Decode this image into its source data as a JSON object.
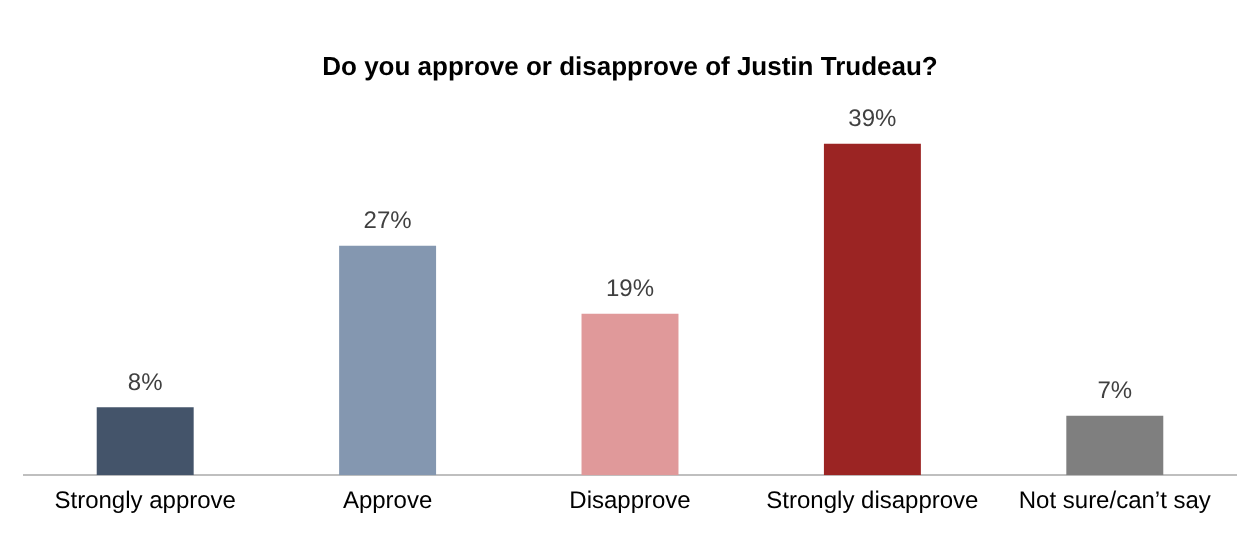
{
  "chart_data": {
    "type": "bar",
    "title": "Do you approve or disapprove of Justin Trudeau?",
    "categories": [
      "Strongly approve",
      "Approve",
      "Disapprove",
      "Strongly disapprove",
      "Not sure/can’t say"
    ],
    "values": [
      8,
      27,
      19,
      39,
      7
    ],
    "colors": [
      "#44546a",
      "#8497b0",
      "#e0999a",
      "#9b2423",
      "#7f7f7f"
    ],
    "value_labels": [
      "8%",
      "27%",
      "19%",
      "39%",
      "7%"
    ],
    "grid": false,
    "legend": false
  }
}
